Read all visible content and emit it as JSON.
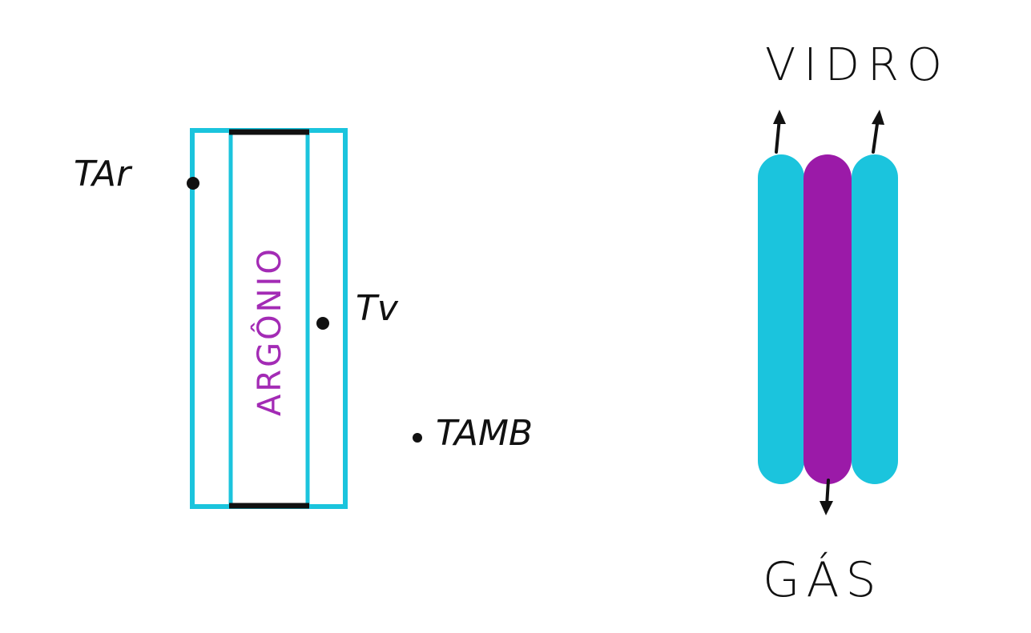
{
  "labels": {
    "t_ar": "TAr",
    "t_v": "Tv",
    "t_amb": "TAMB",
    "vertical_text": "ARGÔNIO",
    "top_label": "VIDRO",
    "bottom_label": "GÁS"
  },
  "colors": {
    "glass_cyan": "#1bc4dd",
    "gas_purple": "#9b1aa8",
    "ink": "#111111",
    "label_purple": "#a32bb5"
  }
}
